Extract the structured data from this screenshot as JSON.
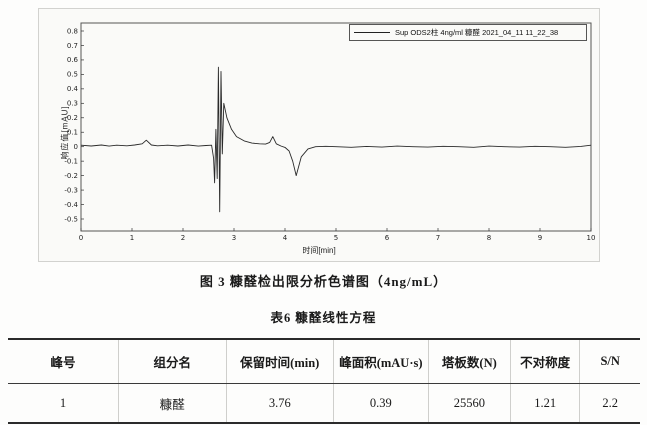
{
  "figure": {
    "legend_label": "Sup ODS2柱 4ng/ml 糠醛 2021_04_11 11_22_38",
    "caption": "图 3  糠醛检出限分析色谱图（4ng/mL）"
  },
  "table": {
    "title": "表6  糠醛线性方程",
    "headers": [
      "峰号",
      "组分名",
      "保留时间(min)",
      "峰面积(mAU·s)",
      "塔板数(N)",
      "不对称度",
      "S/N"
    ],
    "rows": [
      [
        "1",
        "糠醛",
        "3.76",
        "0.39",
        "25560",
        "1.21",
        "2.2"
      ]
    ]
  },
  "colors": {
    "trace": "#2a2a2a",
    "frame": "#555555",
    "table_rule": "#2b2b2b"
  },
  "chart_data": {
    "type": "line",
    "title": "",
    "xlabel": "时间[min]",
    "ylabel": "响应值[mAU]",
    "xlim": [
      0,
      10
    ],
    "ylim": [
      -0.5,
      0.8
    ],
    "xticks": [
      0,
      1,
      2,
      3,
      4,
      5,
      6,
      7,
      8,
      9,
      10
    ],
    "ytick_step": 0.1,
    "grid": false,
    "legend_position": "top-right",
    "series": [
      {
        "name": "Sup ODS2柱 4ng/ml 糠醛 2021_04_11 11_22_38",
        "x": [
          0,
          0.2,
          0.4,
          0.55,
          0.7,
          0.9,
          1.05,
          1.2,
          1.28,
          1.38,
          1.5,
          1.7,
          1.9,
          2.1,
          2.3,
          2.45,
          2.56,
          2.6,
          2.62,
          2.645,
          2.67,
          2.695,
          2.72,
          2.745,
          2.77,
          2.8,
          2.86,
          2.95,
          3.05,
          3.2,
          3.35,
          3.5,
          3.62,
          3.7,
          3.76,
          3.83,
          3.92,
          4.0,
          4.08,
          4.15,
          4.22,
          4.32,
          4.45,
          4.6,
          4.8,
          5.0,
          5.3,
          5.6,
          5.9,
          6.2,
          6.5,
          6.8,
          7.1,
          7.4,
          7.7,
          8.0,
          8.3,
          8.6,
          8.9,
          9.2,
          9.5,
          9.8,
          10.0
        ],
        "y": [
          0.01,
          0.005,
          0.012,
          0.004,
          0.01,
          0.006,
          0.012,
          0.02,
          0.045,
          0.012,
          0.006,
          0.01,
          0.005,
          0.012,
          0.004,
          0.008,
          0.01,
          -0.08,
          -0.25,
          0.12,
          -0.22,
          0.55,
          -0.45,
          0.52,
          -0.05,
          0.3,
          0.2,
          0.12,
          0.07,
          0.04,
          0.025,
          0.02,
          0.018,
          0.03,
          0.07,
          0.02,
          0.005,
          -0.005,
          -0.03,
          -0.1,
          -0.2,
          -0.07,
          -0.015,
          0.0,
          0.003,
          0.0,
          -0.004,
          0.002,
          -0.003,
          0.004,
          0.0,
          -0.003,
          0.003,
          0.0,
          -0.004,
          0.004,
          0.0,
          -0.003,
          0.003,
          0.0,
          -0.004,
          0.002,
          0.01
        ]
      }
    ],
    "annotations_notes": "main analyte peak (糠醛) at 3.76 min height ~0.07 mAU; injection disturbance 2.6-2.8 min oscillating +0.55/-0.45; negative dip ~-0.2 at 4.2 min"
  }
}
